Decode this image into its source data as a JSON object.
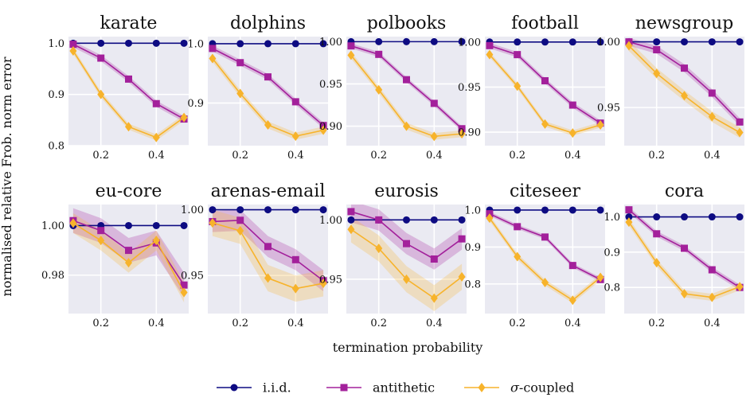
{
  "figure": {
    "ylabel": "normalised relative Frob. norm error",
    "xlabel": "termination probability"
  },
  "legend": {
    "items": [
      {
        "name": "i.i.d.",
        "color": "#0d0b82",
        "marker": "circle"
      },
      {
        "name": "antithetic",
        "color": "#a3209b",
        "marker": "square"
      },
      {
        "name": "σ-coupled",
        "color": "#f7b32b",
        "marker": "diamond"
      }
    ]
  },
  "chart_data": [
    {
      "type": "line",
      "title": "karate",
      "x": [
        0.1,
        0.2,
        0.3,
        0.4,
        0.5
      ],
      "xlim": [
        0.083,
        0.517
      ],
      "ylim": [
        0.8,
        1.013
      ],
      "xticks": [
        0.2,
        0.4
      ],
      "xtick_labels": [
        "0.2",
        "0.4"
      ],
      "yticks": [
        1.0,
        0.9,
        0.8
      ],
      "ytick_labels": [
        "1.0",
        "0.9",
        "0.8"
      ],
      "series": [
        {
          "name": "i.i.d.",
          "values": [
            1.0,
            1.0,
            1.0,
            1.0,
            1.0
          ],
          "band": 0
        },
        {
          "name": "antithetic",
          "values": [
            0.998,
            0.971,
            0.93,
            0.882,
            0.852
          ],
          "band": 0.006
        },
        {
          "name": "σ-coupled",
          "values": [
            0.985,
            0.9,
            0.837,
            0.816,
            0.855
          ],
          "band": 0.006
        }
      ]
    },
    {
      "type": "line",
      "title": "dolphins",
      "x": [
        0.1,
        0.2,
        0.3,
        0.4,
        0.5
      ],
      "xlim": [
        0.083,
        0.517
      ],
      "ylim": [
        0.828,
        1.012
      ],
      "xticks": [
        0.2,
        0.4
      ],
      "xtick_labels": [
        "0.2",
        "0.4"
      ],
      "yticks": [
        1.0,
        0.9
      ],
      "ytick_labels": [
        "1.0",
        "0.9"
      ],
      "series": [
        {
          "name": "i.i.d.",
          "values": [
            1.0,
            1.0,
            1.0,
            1.0,
            1.0
          ],
          "band": 0
        },
        {
          "name": "antithetic",
          "values": [
            0.992,
            0.968,
            0.944,
            0.902,
            0.862
          ],
          "band": 0.005
        },
        {
          "name": "σ-coupled",
          "values": [
            0.975,
            0.916,
            0.863,
            0.844,
            0.854
          ],
          "band": 0.006
        }
      ]
    },
    {
      "type": "line",
      "title": "polbooks",
      "x": [
        0.1,
        0.2,
        0.3,
        0.4,
        0.5
      ],
      "xlim": [
        0.083,
        0.517
      ],
      "ylim": [
        0.877,
        1.006
      ],
      "xticks": [
        0.2,
        0.4
      ],
      "xtick_labels": [
        "0.2",
        "0.4"
      ],
      "yticks": [
        1.0,
        0.95,
        0.9
      ],
      "ytick_labels": [
        "1.00",
        "0.95",
        "0.90"
      ],
      "series": [
        {
          "name": "i.i.d.",
          "values": [
            1.0,
            1.0,
            1.0,
            1.0,
            1.0
          ],
          "band": 0
        },
        {
          "name": "antithetic",
          "values": [
            0.995,
            0.985,
            0.955,
            0.927,
            0.897
          ],
          "band": 0.003
        },
        {
          "name": "σ-coupled",
          "values": [
            0.984,
            0.943,
            0.9,
            0.888,
            0.891
          ],
          "band": 0.004
        }
      ]
    },
    {
      "type": "line",
      "title": "football",
      "x": [
        0.1,
        0.2,
        0.3,
        0.4,
        0.5
      ],
      "xlim": [
        0.083,
        0.517
      ],
      "ylim": [
        0.885,
        1.006
      ],
      "xticks": [
        0.2,
        0.4
      ],
      "xtick_labels": [
        "0.2",
        "0.4"
      ],
      "yticks": [
        1.0,
        0.95,
        0.9
      ],
      "ytick_labels": [
        "1.00",
        "0.95",
        "0.90"
      ],
      "series": [
        {
          "name": "i.i.d.",
          "values": [
            1.0,
            1.0,
            1.0,
            1.0,
            1.0
          ],
          "band": 0
        },
        {
          "name": "antithetic",
          "values": [
            0.996,
            0.986,
            0.957,
            0.93,
            0.91
          ],
          "band": 0.003
        },
        {
          "name": "σ-coupled",
          "values": [
            0.986,
            0.951,
            0.909,
            0.899,
            0.908
          ],
          "band": 0.003
        }
      ]
    },
    {
      "type": "line",
      "title": "newsgroup",
      "x": [
        0.1,
        0.2,
        0.3,
        0.4,
        0.5
      ],
      "xlim": [
        0.083,
        0.517
      ],
      "ylim": [
        0.921,
        1.004
      ],
      "xticks": [
        0.2,
        0.4
      ],
      "xtick_labels": [
        "0.2",
        "0.4"
      ],
      "yticks": [
        1.0,
        0.95
      ],
      "ytick_labels": [
        "1.00",
        "0.95"
      ],
      "series": [
        {
          "name": "i.i.d.",
          "values": [
            1.0,
            1.0,
            1.0,
            1.0,
            1.0
          ],
          "band": 0
        },
        {
          "name": "antithetic",
          "values": [
            1.0,
            0.994,
            0.98,
            0.961,
            0.939
          ],
          "band": 0.003
        },
        {
          "name": "σ-coupled",
          "values": [
            0.997,
            0.976,
            0.959,
            0.943,
            0.931
          ],
          "band": 0.004
        }
      ]
    },
    {
      "type": "line",
      "title": "eu-core",
      "x": [
        0.1,
        0.2,
        0.3,
        0.4,
        0.5
      ],
      "xlim": [
        0.083,
        0.517
      ],
      "ylim": [
        0.9645,
        1.0085
      ],
      "xticks": [
        0.2,
        0.4
      ],
      "xtick_labels": [
        "0.2",
        "0.4"
      ],
      "yticks": [
        1.0,
        0.98
      ],
      "ytick_labels": [
        "1.00",
        "0.98"
      ],
      "series": [
        {
          "name": "i.i.d.",
          "values": [
            1.0,
            1.0,
            1.0,
            1.0,
            1.0
          ],
          "band": 0
        },
        {
          "name": "antithetic",
          "values": [
            1.002,
            0.998,
            0.99,
            0.993,
            0.976
          ],
          "band": 0.005
        },
        {
          "name": "σ-coupled",
          "values": [
            1.001,
            0.994,
            0.985,
            0.994,
            0.973
          ],
          "band": 0.004
        }
      ]
    },
    {
      "type": "line",
      "title": "arenas-email",
      "x": [
        0.1,
        0.2,
        0.3,
        0.4,
        0.5
      ],
      "xlim": [
        0.083,
        0.517
      ],
      "ylim": [
        0.921,
        1.004
      ],
      "xticks": [
        0.2,
        0.4
      ],
      "xtick_labels": [
        "0.2",
        "0.4"
      ],
      "yticks": [
        1.0,
        0.95
      ],
      "ytick_labels": [
        "1.00",
        "0.95"
      ],
      "series": [
        {
          "name": "i.i.d.",
          "values": [
            1.0,
            1.0,
            1.0,
            1.0,
            1.0
          ],
          "band": 0
        },
        {
          "name": "antithetic",
          "values": [
            0.991,
            0.992,
            0.972,
            0.962,
            0.946
          ],
          "band": 0.008
        },
        {
          "name": "σ-coupled",
          "values": [
            0.99,
            0.984,
            0.948,
            0.94,
            0.944
          ],
          "band": 0.01
        }
      ]
    },
    {
      "type": "line",
      "title": "eurosis",
      "x": [
        0.1,
        0.2,
        0.3,
        0.4,
        0.5
      ],
      "xlim": [
        0.083,
        0.517
      ],
      "ylim": [
        0.921,
        1.013
      ],
      "xticks": [
        0.2,
        0.4
      ],
      "xtick_labels": [
        "0.2",
        "0.4"
      ],
      "yticks": [
        1.0,
        0.95
      ],
      "ytick_labels": [
        "1.00",
        "0.95"
      ],
      "series": [
        {
          "name": "i.i.d.",
          "values": [
            1.0,
            1.0,
            1.0,
            1.0,
            1.0
          ],
          "band": 0
        },
        {
          "name": "antithetic",
          "values": [
            1.007,
            1.0,
            0.98,
            0.967,
            0.984
          ],
          "band": 0.009
        },
        {
          "name": "σ-coupled",
          "values": [
            0.992,
            0.976,
            0.95,
            0.934,
            0.952
          ],
          "band": 0.011
        }
      ]
    },
    {
      "type": "line",
      "title": "citeseer",
      "x": [
        0.1,
        0.2,
        0.3,
        0.4,
        0.5
      ],
      "xlim": [
        0.083,
        0.517
      ],
      "ylim": [
        0.72,
        1.015
      ],
      "xticks": [
        0.2,
        0.4
      ],
      "xtick_labels": [
        "0.2",
        "0.4"
      ],
      "yticks": [
        1.0,
        0.9,
        0.8
      ],
      "ytick_labels": [
        "1.0",
        "0.9",
        "0.8"
      ],
      "series": [
        {
          "name": "i.i.d.",
          "values": [
            1.0,
            1.0,
            1.0,
            1.0,
            1.0
          ],
          "band": 0
        },
        {
          "name": "antithetic",
          "values": [
            0.99,
            0.955,
            0.927,
            0.85,
            0.812
          ],
          "band": 0.006
        },
        {
          "name": "σ-coupled",
          "values": [
            0.978,
            0.874,
            0.804,
            0.756,
            0.818
          ],
          "band": 0.008
        }
      ]
    },
    {
      "type": "line",
      "title": "cora",
      "x": [
        0.1,
        0.2,
        0.3,
        0.4,
        0.5
      ],
      "xlim": [
        0.083,
        0.517
      ],
      "ylim": [
        0.726,
        1.035
      ],
      "xticks": [
        0.2,
        0.4
      ],
      "xtick_labels": [
        "0.2",
        "0.4"
      ],
      "yticks": [
        1.0,
        0.9,
        0.8
      ],
      "ytick_labels": [
        "1.0",
        "0.9",
        "0.8"
      ],
      "series": [
        {
          "name": "i.i.d.",
          "values": [
            1.0,
            1.0,
            1.0,
            1.0,
            1.0
          ],
          "band": 0
        },
        {
          "name": "antithetic",
          "values": [
            1.02,
            0.952,
            0.911,
            0.85,
            0.8
          ],
          "band": 0.008
        },
        {
          "name": "σ-coupled",
          "values": [
            0.985,
            0.87,
            0.782,
            0.772,
            0.802
          ],
          "band": 0.01
        }
      ]
    }
  ]
}
